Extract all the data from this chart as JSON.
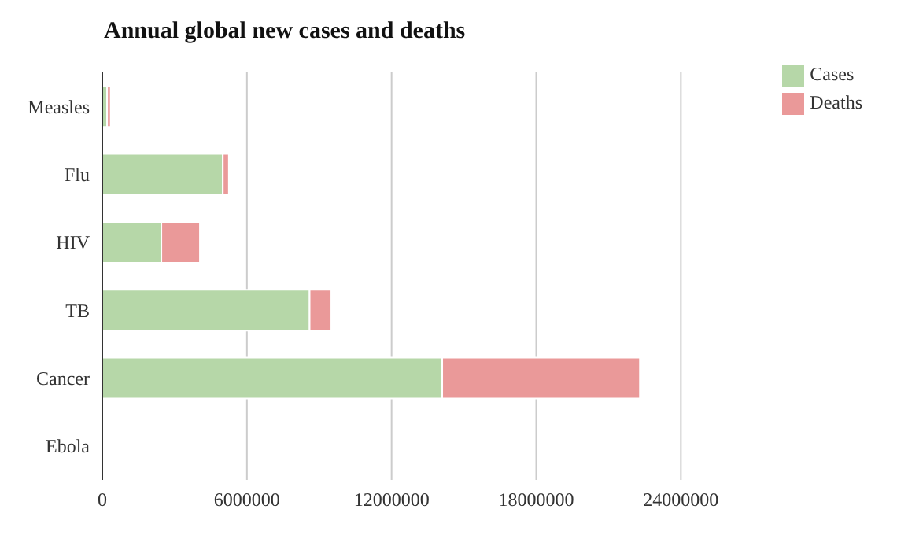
{
  "chart_data": {
    "type": "bar",
    "orientation": "horizontal",
    "stacked": true,
    "title": "Annual global new cases and deaths",
    "categories": [
      "Measles",
      "Flu",
      "HIV",
      "TB",
      "Cancer",
      "Ebola"
    ],
    "series": [
      {
        "name": "Cases",
        "color": "#b6d7a8",
        "values": [
          200000,
          5000000,
          2450000,
          8600000,
          14100000,
          0
        ]
      },
      {
        "name": "Deaths",
        "color": "#ea9999",
        "values": [
          150000,
          250000,
          1600000,
          900000,
          8200000,
          0
        ]
      }
    ],
    "xlim": [
      0,
      24000000
    ],
    "xticks": [
      0,
      6000000,
      12000000,
      18000000,
      24000000
    ],
    "grid": "x",
    "legend": "top right"
  }
}
